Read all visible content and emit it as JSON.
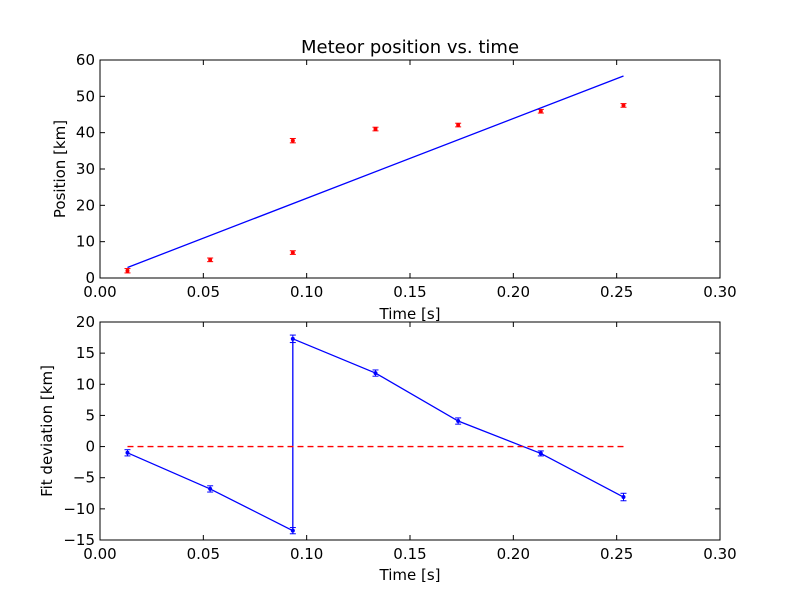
{
  "chart_data": [
    {
      "type": "scatter",
      "title": "Meteor position vs. time",
      "xlabel": "Time [s]",
      "ylabel": "Position [km]",
      "xlim": [
        0.0,
        0.3
      ],
      "ylim": [
        0,
        60
      ],
      "xticks": [
        "0.00",
        "0.05",
        "0.10",
        "0.15",
        "0.20",
        "0.25",
        "0.30"
      ],
      "yticks": [
        "0",
        "10",
        "20",
        "30",
        "40",
        "50",
        "60"
      ],
      "grid": false,
      "series": [
        {
          "kind": "errorbar-points",
          "color": "#ff0000",
          "x": [
            0.0133,
            0.0533,
            0.0933,
            0.0933,
            0.1333,
            0.1733,
            0.2133,
            0.2533
          ],
          "y": [
            2.0,
            5.0,
            7.0,
            37.8,
            41.0,
            42.1,
            45.9,
            47.5
          ],
          "yerr": [
            0.6,
            0.5,
            0.5,
            0.6,
            0.5,
            0.5,
            0.5,
            0.5
          ]
        },
        {
          "kind": "line",
          "color": "#0000ff",
          "x": [
            0.0133,
            0.2533
          ],
          "y": [
            2.9,
            55.6
          ]
        }
      ]
    },
    {
      "type": "line",
      "title": "",
      "xlabel": "Time [s]",
      "ylabel": "Fit deviation [km]",
      "xlim": [
        0.0,
        0.3
      ],
      "ylim": [
        -15,
        20
      ],
      "xticks": [
        "0.00",
        "0.05",
        "0.10",
        "0.15",
        "0.20",
        "0.25",
        "0.30"
      ],
      "yticks": [
        "−15",
        "−10",
        "−5",
        "0",
        "5",
        "10",
        "15",
        "20"
      ],
      "grid": false,
      "series": [
        {
          "kind": "errorbar-line",
          "color": "#0000ff",
          "x": [
            0.0133,
            0.0533,
            0.0933,
            0.0933,
            0.1333,
            0.1733,
            0.2133,
            0.2533
          ],
          "y": [
            -1.0,
            -6.8,
            -13.5,
            17.3,
            11.8,
            4.1,
            -1.1,
            -8.1
          ],
          "yerr": [
            0.5,
            0.5,
            0.5,
            0.6,
            0.5,
            0.5,
            0.4,
            0.6
          ]
        },
        {
          "kind": "reference-line",
          "color": "#ff0000",
          "style": "dashed",
          "x": [
            0.0133,
            0.2533
          ],
          "y": [
            0,
            0
          ]
        }
      ]
    }
  ]
}
